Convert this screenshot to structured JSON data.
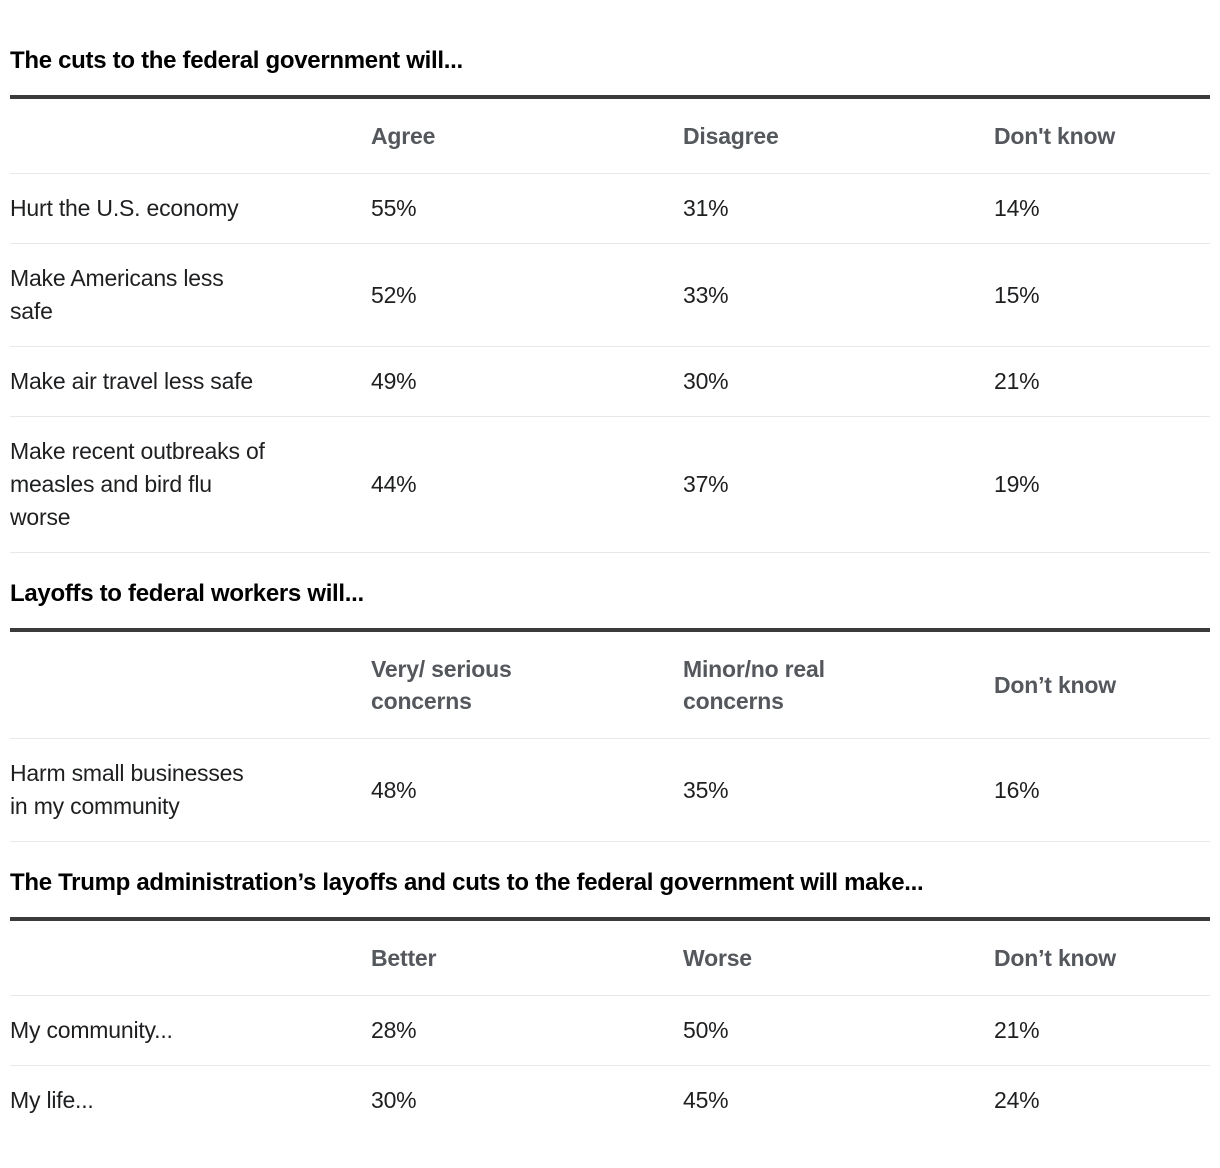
{
  "colors": {
    "background": "#ffffff",
    "title_text": "#000000",
    "thick_rule": "#3b3b3b",
    "header_text": "#54575c",
    "body_text": "#1e1f21",
    "row_divider": "#e8e8e8"
  },
  "sections": [
    {
      "title": "The cuts to the federal government will...",
      "columns": [
        "Agree",
        "Disagree",
        "Don't know"
      ],
      "rows": [
        {
          "label": "Hurt the U.S. economy",
          "values": [
            "55%",
            "31%",
            "14%"
          ]
        },
        {
          "label": "Make Americans less safe",
          "values": [
            "52%",
            "33%",
            "15%"
          ]
        },
        {
          "label": "Make air travel less safe",
          "values": [
            "49%",
            "30%",
            "21%"
          ]
        },
        {
          "label": "Make recent outbreaks of measles and bird flu worse",
          "values": [
            "44%",
            "37%",
            "19%"
          ]
        }
      ]
    },
    {
      "title": "Layoffs to federal workers will...",
      "columns": [
        "Very/ serious concerns",
        "Minor/no real concerns",
        "Don’t know"
      ],
      "rows": [
        {
          "label": "Harm small businesses in my community",
          "values": [
            "48%",
            "35%",
            "16%"
          ]
        }
      ]
    },
    {
      "title": "The Trump administration’s layoffs and cuts to the federal government will make...",
      "columns": [
        "Better",
        "Worse",
        "Don’t know"
      ],
      "rows": [
        {
          "label": "My community...",
          "values": [
            "28%",
            "50%",
            "21%"
          ]
        },
        {
          "label": "My life...",
          "values": [
            "30%",
            "45%",
            "24%"
          ]
        }
      ]
    }
  ],
  "chart_data": [
    {
      "type": "table",
      "title": "The cuts to the federal government will...",
      "columns": [
        "Agree",
        "Disagree",
        "Don't know"
      ],
      "unit": "%",
      "rows": [
        {
          "label": "Hurt the U.S. economy",
          "values": [
            55,
            31,
            14
          ]
        },
        {
          "label": "Make Americans less safe",
          "values": [
            52,
            33,
            15
          ]
        },
        {
          "label": "Make air travel less safe",
          "values": [
            49,
            30,
            21
          ]
        },
        {
          "label": "Make recent outbreaks of measles and bird flu worse",
          "values": [
            44,
            37,
            19
          ]
        }
      ]
    },
    {
      "type": "table",
      "title": "Layoffs to federal workers will...",
      "columns": [
        "Very/ serious concerns",
        "Minor/no real concerns",
        "Don’t know"
      ],
      "unit": "%",
      "rows": [
        {
          "label": "Harm small businesses in my community",
          "values": [
            48,
            35,
            16
          ]
        }
      ]
    },
    {
      "type": "table",
      "title": "The Trump administration’s layoffs and cuts to the federal government will make...",
      "columns": [
        "Better",
        "Worse",
        "Don’t know"
      ],
      "unit": "%",
      "rows": [
        {
          "label": "My community...",
          "values": [
            28,
            50,
            21
          ]
        },
        {
          "label": "My life...",
          "values": [
            30,
            45,
            24
          ]
        }
      ]
    }
  ]
}
